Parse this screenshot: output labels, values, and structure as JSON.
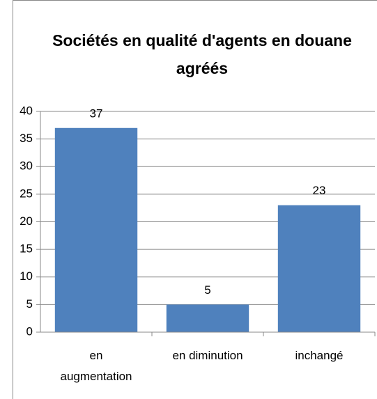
{
  "chart_data": {
    "type": "bar",
    "title": "Sociétés en qualité d'agents en douane agréés",
    "categories": [
      "en augmentation",
      "en diminution",
      "inchangé"
    ],
    "values": [
      37,
      5,
      23
    ],
    "color": "#4f81bd",
    "ylim": [
      0,
      40
    ],
    "yticks": [
      0,
      5,
      10,
      15,
      20,
      25,
      30,
      35,
      40
    ],
    "grid": true
  }
}
